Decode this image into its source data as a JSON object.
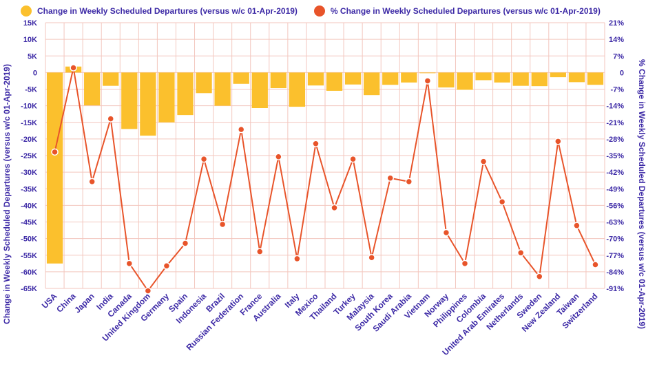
{
  "chart_data": {
    "type": "bar",
    "categories": [
      "USA",
      "China",
      "Japan",
      "India",
      "Canada",
      "United Kingdom",
      "Germany",
      "Spain",
      "Indonesia",
      "Brazil",
      "Russian Federation",
      "France",
      "Australia",
      "Italy",
      "Mexico",
      "Thailand",
      "Turkey",
      "Malaysia",
      "South Korea",
      "Saudi Arabia",
      "Vietnam",
      "Norway",
      "Philippines",
      "Colombia",
      "United Arab Emirates",
      "Netherlands",
      "Sweden",
      "New Zealand",
      "Taiwan",
      "Switzerland"
    ],
    "series": [
      {
        "name": "Change in Weekly Scheduled Departures (versus w/c 01-Apr-2019)",
        "type": "bar",
        "axis": "left",
        "color": "#fbc02d",
        "values": [
          -57500,
          1800,
          -9900,
          -4000,
          -17000,
          -19000,
          -15000,
          -12800,
          -6200,
          -10000,
          -3400,
          -10700,
          -4700,
          -10300,
          -3900,
          -5500,
          -3600,
          -6800,
          -3700,
          -3000,
          -100,
          -4500,
          -5200,
          -2300,
          -3000,
          -4000,
          -4100,
          -1400,
          -2900,
          -3700
        ]
      },
      {
        "name": "% Change in Weekly Scheduled Departures (versus w/c 01-Apr-2019)",
        "type": "line",
        "axis": "right",
        "color": "#e8542a",
        "values": [
          -33.5,
          2,
          -46,
          -19.5,
          -80.5,
          -92,
          -81.5,
          -72,
          -36.5,
          -64,
          -24,
          -75.5,
          -35.5,
          -78.5,
          -30,
          -57,
          -36.5,
          -78,
          -44.5,
          -46,
          -3.5,
          -67.5,
          -80.5,
          -37.5,
          -54.5,
          -76,
          -86,
          -29,
          -64.5,
          -81
        ]
      }
    ],
    "ylabel": "Change in Weekly Scheduled Departures (versus w/c 01-Apr-2019)",
    "y2label": "% Change in Weekly Scheduled Departures (versus w/c 01-Apr-2019)",
    "ylim": [
      -65000,
      15000
    ],
    "y2lim": [
      -91,
      21
    ],
    "yticks": [
      15000,
      10000,
      5000,
      0,
      -5000,
      -10000,
      -15000,
      -20000,
      -25000,
      -30000,
      -35000,
      -40000,
      -45000,
      -50000,
      -55000,
      -60000,
      -65000
    ],
    "yticklabels": [
      "15K",
      "10K",
      "5K",
      "0",
      "-5K",
      "-10K",
      "-15K",
      "-20K",
      "-25K",
      "-30K",
      "-35K",
      "-40K",
      "-45K",
      "-50K",
      "-55K",
      "-60K",
      "-65K"
    ],
    "y2ticks": [
      21,
      14,
      7,
      0,
      -7,
      -14,
      -21,
      -28,
      -35,
      -42,
      -49,
      -56,
      -63,
      -70,
      -77,
      -84,
      -91
    ],
    "y2ticklabels": [
      "21%",
      "14%",
      "7%",
      "0",
      "-7%",
      "-14%",
      "-21%",
      "-28%",
      "-35%",
      "-42%",
      "-49%",
      "-56%",
      "-63%",
      "-70%",
      "-77%",
      "-84%",
      "-91%"
    ],
    "grid": true,
    "legend_position": "top-left",
    "colors": {
      "bar": "#fbc02d",
      "line": "#e8542a",
      "text": "#3d2aa6",
      "grid": "#f3c6be"
    }
  }
}
